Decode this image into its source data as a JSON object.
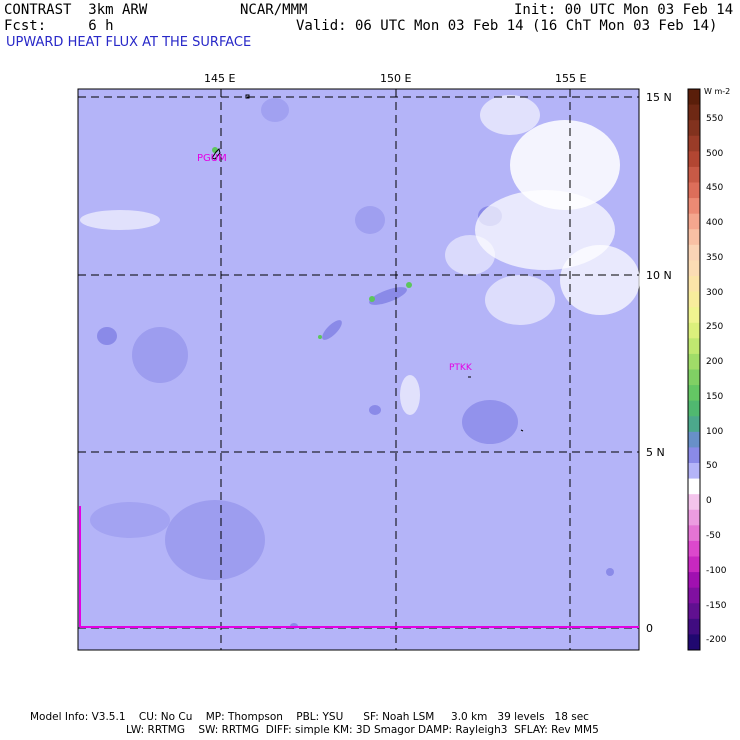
{
  "header": {
    "left_line1": "CONTRAST  3km ARW",
    "left_line2": "Fcst:     6 h",
    "center_line1": "NCAR/MMM",
    "right_line1": "Init: 00 UTC Mon 03 Feb 14",
    "right_line2": "Valid: 06 UTC Mon 03 Feb 14 (16 ChT Mon 03 Feb 14)",
    "field_title": "UPWARD HEAT FLUX AT THE SURFACE"
  },
  "map": {
    "lon_labels": [
      "145 E",
      "150 E",
      "155 E"
    ],
    "lat_labels": [
      "15 N",
      "10 N",
      "5 N",
      "0"
    ],
    "stations": [
      "PGUM",
      "PTKK"
    ],
    "background_color": "#b4b4f8",
    "patch_color": "#8a8ae8",
    "green_color": "#5cc65c",
    "cloud_color": "#ffffff",
    "magenta_color": "#e400e4"
  },
  "colorbar": {
    "units": "W m-2",
    "labels": [
      "550",
      "500",
      "450",
      "400",
      "350",
      "300",
      "250",
      "200",
      "150",
      "100",
      "50",
      "0",
      "-50",
      "-100",
      "-150",
      "-200"
    ]
  },
  "footer": {
    "line1": "Model Info: V3.5.1    CU: No Cu    MP: Thompson    PBL: YSU      SF: Noah LSM     3.0 km   39 levels   18 sec",
    "line2": "LW: RRTMG    SW: RRTMG  DIFF: simple KM: 3D Smagor DAMP: Rayleigh3  SFLAY: Rev MM5"
  }
}
